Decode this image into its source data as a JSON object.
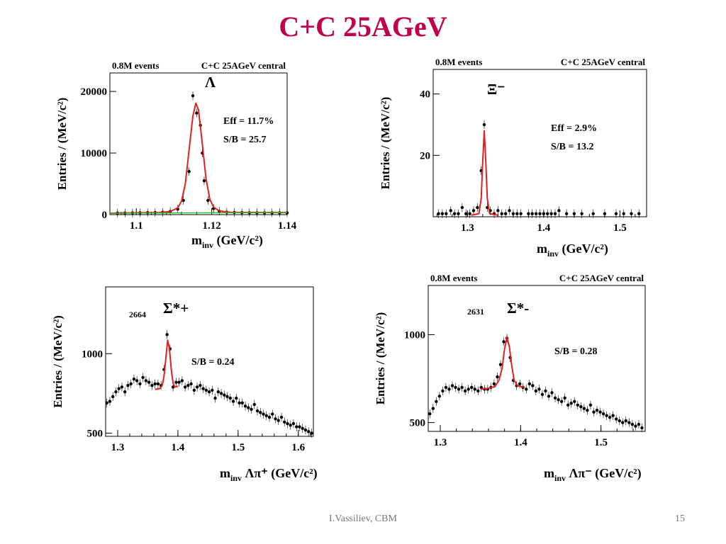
{
  "slide": {
    "title": "C+C 25AGeV",
    "title_color": "#c0004a",
    "footer_author": "I.Vassiliev, CBM",
    "page_number": "15"
  },
  "colors": {
    "fit": "#e02020",
    "background_fit": "#22bb22",
    "points": "#000000"
  },
  "chart_data": [
    {
      "id": "lambda",
      "type": "scatter",
      "header_left": "0.8M events",
      "header_right": "C+C 25AGeV central",
      "particle": "Λ",
      "stats": [
        "Eff = 11.7%",
        "S/B = 25.7"
      ],
      "ylabel": "Entries / (MeV/c²)",
      "xlabel_main": "m",
      "xlabel_sub": "inv",
      "xlabel_rest": " (GeV/c²)",
      "xlim": [
        1.093,
        1.14
      ],
      "ylim": [
        0,
        23000
      ],
      "xticks": [
        "1.1",
        "1.12",
        "1.14"
      ],
      "yticks": [
        "0",
        "10000",
        "20000"
      ],
      "series": [
        {
          "kind": "data",
          "x": [
            1.095,
            1.097,
            1.099,
            1.101,
            1.103,
            1.105,
            1.107,
            1.109,
            1.111,
            1.1125,
            1.114,
            1.115,
            1.116,
            1.117,
            1.1175,
            1.118,
            1.119,
            1.1205,
            1.122,
            1.124,
            1.126,
            1.128,
            1.13,
            1.132,
            1.134,
            1.136,
            1.138,
            1.14
          ],
          "y": [
            250,
            270,
            280,
            300,
            320,
            330,
            380,
            500,
            900,
            2300,
            7000,
            19300,
            16500,
            14500,
            10000,
            5500,
            2300,
            1000,
            550,
            400,
            350,
            320,
            310,
            300,
            300,
            290,
            300,
            300
          ]
        },
        {
          "kind": "fit",
          "x": [
            1.093,
            1.106,
            1.109,
            1.111,
            1.112,
            1.113,
            1.114,
            1.115,
            1.1158,
            1.1165,
            1.1175,
            1.1185,
            1.1195,
            1.1205,
            1.122,
            1.125,
            1.14
          ],
          "y": [
            250,
            330,
            500,
            1100,
            2200,
            5000,
            10500,
            16000,
            18100,
            17000,
            11500,
            5800,
            2500,
            1200,
            600,
            380,
            330
          ]
        },
        {
          "kind": "background",
          "x": [
            1.093,
            1.14
          ],
          "y": [
            230,
            350
          ]
        }
      ]
    },
    {
      "id": "xi",
      "type": "scatter",
      "header_left": "0.8M events",
      "header_right": "C+C 25AGeV central",
      "particle": "Ξ⁻",
      "stats": [
        "Eff = 2.9%",
        "S/B = 13.2"
      ],
      "ylabel": "Entries / (MeV/c²)",
      "xlabel_main": "m",
      "xlabel_sub": "inv",
      "xlabel_rest": " (GeV/c²)",
      "xlim": [
        1.255,
        1.535
      ],
      "ylim": [
        0,
        48
      ],
      "xticks": [
        "1.3",
        "1.4",
        "1.5"
      ],
      "yticks": [
        "20",
        "40"
      ],
      "series": [
        {
          "kind": "data",
          "x": [
            1.262,
            1.267,
            1.272,
            1.278,
            1.283,
            1.288,
            1.293,
            1.298,
            1.303,
            1.308,
            1.313,
            1.318,
            1.322,
            1.326,
            1.33,
            1.335,
            1.34,
            1.345,
            1.35,
            1.355,
            1.36,
            1.365,
            1.37,
            1.38,
            1.385,
            1.39,
            1.395,
            1.4,
            1.405,
            1.41,
            1.415,
            1.42,
            1.43,
            1.44,
            1.45,
            1.465,
            1.48,
            1.495,
            1.505,
            1.515,
            1.525
          ],
          "y": [
            1,
            1,
            1,
            2,
            1,
            1,
            3,
            1,
            1,
            2,
            3,
            15,
            30,
            3,
            2,
            1,
            2,
            1,
            1,
            2,
            1,
            1,
            1,
            1,
            1,
            1,
            1,
            1,
            1,
            1,
            1,
            2,
            1,
            1,
            1,
            1,
            1,
            1,
            1,
            1,
            1
          ]
        },
        {
          "kind": "fit",
          "x": [
            1.305,
            1.315,
            1.318,
            1.32,
            1.322,
            1.324,
            1.326,
            1.329,
            1.34
          ],
          "y": [
            0.5,
            1,
            6,
            18,
            28,
            18,
            6,
            1,
            0.5
          ]
        }
      ]
    },
    {
      "id": "sigma-plus",
      "type": "scatter",
      "particle": "Σ*+",
      "count_label": "2664",
      "stats": [
        "S/B = 0.24"
      ],
      "ylabel": "Entries / (MeV/c²)",
      "xlabel_main": "m",
      "xlabel_sub": "inv",
      "xlabel_rest": "  Λπ⁺ (GeV/c²)",
      "xlim": [
        1.28,
        1.625
      ],
      "ylim": [
        480,
        1420
      ],
      "xticks": [
        "1.3",
        "1.4",
        "1.5",
        "1.6"
      ],
      "yticks": [
        "500",
        "1000"
      ],
      "series": [
        {
          "kind": "data",
          "x": [
            1.282,
            1.287,
            1.292,
            1.297,
            1.302,
            1.307,
            1.312,
            1.317,
            1.322,
            1.327,
            1.332,
            1.337,
            1.342,
            1.347,
            1.352,
            1.357,
            1.362,
            1.367,
            1.372,
            1.377,
            1.382,
            1.387,
            1.392,
            1.397,
            1.402,
            1.407,
            1.412,
            1.417,
            1.422,
            1.427,
            1.432,
            1.437,
            1.442,
            1.447,
            1.452,
            1.457,
            1.462,
            1.467,
            1.472,
            1.477,
            1.482,
            1.487,
            1.492,
            1.497,
            1.502,
            1.507,
            1.512,
            1.517,
            1.522,
            1.527,
            1.532,
            1.537,
            1.542,
            1.547,
            1.552,
            1.557,
            1.562,
            1.567,
            1.572,
            1.577,
            1.582,
            1.587,
            1.592,
            1.597,
            1.602,
            1.607,
            1.612,
            1.617,
            1.622
          ],
          "y": [
            690,
            700,
            730,
            760,
            780,
            790,
            760,
            800,
            810,
            840,
            830,
            810,
            850,
            830,
            820,
            800,
            810,
            810,
            800,
            900,
            1120,
            1030,
            790,
            820,
            820,
            830,
            790,
            800,
            810,
            770,
            790,
            800,
            780,
            770,
            760,
            770,
            720,
            760,
            750,
            740,
            730,
            720,
            700,
            720,
            690,
            690,
            670,
            660,
            650,
            680,
            640,
            630,
            620,
            610,
            600,
            620,
            590,
            580,
            600,
            570,
            560,
            550,
            560,
            540,
            540,
            530,
            520,
            510,
            500
          ]
        },
        {
          "kind": "fit",
          "x": [
            1.362,
            1.37,
            1.374,
            1.377,
            1.38,
            1.383,
            1.386,
            1.389,
            1.392,
            1.395,
            1.4
          ],
          "y": [
            775,
            780,
            800,
            860,
            970,
            1085,
            1030,
            900,
            815,
            790,
            795
          ]
        }
      ]
    },
    {
      "id": "sigma-minus",
      "type": "scatter",
      "header_left": "0.8M events",
      "header_right": "C+C 25AGeV central",
      "particle": "Σ*-",
      "count_label": "2631",
      "stats": [
        "S/B = 0.28"
      ],
      "ylabel": "Entries / (MeV/c²)",
      "xlabel_main": "m",
      "xlabel_sub": "inv",
      "xlabel_rest": "  Λπ⁻ (GeV/c²)",
      "xlim": [
        1.285,
        1.555
      ],
      "ylim": [
        450,
        1280
      ],
      "xticks": [
        "1.3",
        "1.4",
        "1.5"
      ],
      "yticks": [
        "500",
        "1000"
      ],
      "series": [
        {
          "kind": "data",
          "x": [
            1.287,
            1.291,
            1.295,
            1.299,
            1.303,
            1.307,
            1.311,
            1.315,
            1.319,
            1.323,
            1.327,
            1.331,
            1.335,
            1.339,
            1.343,
            1.347,
            1.351,
            1.355,
            1.359,
            1.363,
            1.367,
            1.371,
            1.375,
            1.379,
            1.383,
            1.387,
            1.391,
            1.395,
            1.399,
            1.403,
            1.407,
            1.411,
            1.415,
            1.419,
            1.423,
            1.427,
            1.431,
            1.435,
            1.439,
            1.443,
            1.447,
            1.451,
            1.455,
            1.459,
            1.463,
            1.467,
            1.471,
            1.475,
            1.479,
            1.483,
            1.487,
            1.491,
            1.495,
            1.499,
            1.503,
            1.507,
            1.511,
            1.515,
            1.519,
            1.523,
            1.527,
            1.531,
            1.535,
            1.539,
            1.543,
            1.547,
            1.551
          ],
          "y": [
            550,
            580,
            620,
            650,
            680,
            700,
            690,
            710,
            700,
            690,
            700,
            680,
            690,
            700,
            690,
            680,
            700,
            690,
            690,
            700,
            720,
            760,
            830,
            960,
            980,
            870,
            740,
            710,
            720,
            700,
            690,
            720,
            710,
            680,
            690,
            660,
            680,
            650,
            670,
            640,
            630,
            620,
            640,
            600,
            610,
            620,
            600,
            590,
            580,
            570,
            600,
            560,
            570,
            560,
            550,
            540,
            530,
            540,
            520,
            510,
            500,
            510,
            500,
            490,
            480,
            490,
            470
          ]
        },
        {
          "kind": "fit",
          "x": [
            1.35,
            1.36,
            1.368,
            1.373,
            1.377,
            1.38,
            1.383,
            1.386,
            1.389,
            1.392,
            1.396,
            1.405
          ],
          "y": [
            690,
            695,
            705,
            740,
            810,
            920,
            985,
            930,
            820,
            740,
            710,
            700
          ]
        }
      ]
    }
  ]
}
